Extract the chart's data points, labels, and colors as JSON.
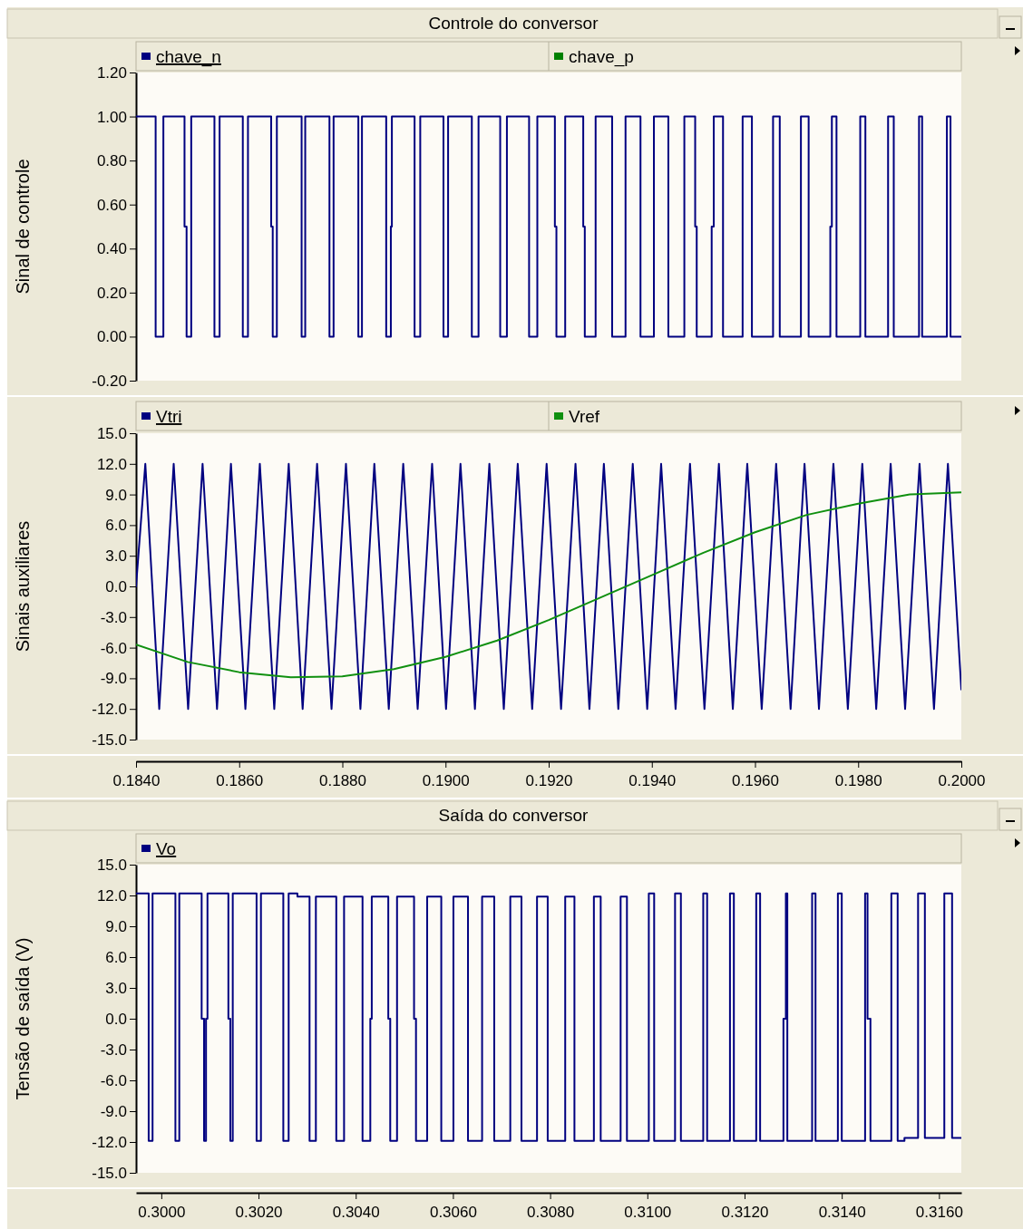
{
  "chart_data": [
    {
      "type": "step",
      "title": "Controle do conversor",
      "ylabel": "Sinal de controle",
      "legend": "top",
      "tick_labels": "y",
      "xlim": [
        0.184,
        0.2
      ],
      "ylim": [
        -0.2,
        1.2
      ],
      "yticks": [
        {
          "value": -0.2,
          "label": "-0.20"
        },
        {
          "value": 0,
          "label": "0.00"
        },
        {
          "value": 0.2,
          "label": "0.20"
        },
        {
          "value": 0.4,
          "label": "0.40"
        },
        {
          "value": 0.6,
          "label": "0.60"
        },
        {
          "value": 0.8,
          "label": "0.80"
        },
        {
          "value": 1,
          "label": "1.00"
        },
        {
          "value": 1.2,
          "label": "1.20"
        }
      ],
      "series": [
        {
          "name": "chave_n",
          "color": "#000080",
          "x": [
            0.184,
            0.18438,
            0.18453,
            0.18494,
            0.18498,
            0.18507,
            0.18552,
            0.18562,
            0.18607,
            0.18617,
            0.18662,
            0.18665,
            0.18673,
            0.18721,
            0.18728,
            0.18775,
            0.18783,
            0.18831,
            0.18838,
            0.18885,
            0.18894,
            0.18896,
            0.1894,
            0.18951,
            0.18996,
            0.19005,
            0.19051,
            0.19064,
            0.19106,
            0.19119,
            0.19162,
            0.19178,
            0.19212,
            0.19215,
            0.19232,
            0.19267,
            0.1927,
            0.19291,
            0.19323,
            0.19349,
            0.19378,
            0.19404,
            0.19432,
            0.19463,
            0.19484,
            0.19487,
            0.19516,
            0.1952,
            0.19538,
            0.19576,
            0.19594,
            0.19635,
            0.19648,
            0.19689,
            0.19704,
            0.19746,
            0.19749,
            0.19758,
            0.19804,
            0.19814,
            0.19858,
            0.19869,
            0.19918,
            0.19924,
            0.19972,
            0.19979,
            0.2
          ],
          "values": [
            1,
            0,
            1,
            0.5,
            0,
            1,
            0,
            1,
            0,
            1,
            0.5,
            0,
            1,
            0,
            1,
            0,
            1,
            0,
            1,
            0,
            0.5,
            1,
            0,
            1,
            0,
            1,
            0,
            1,
            0,
            1,
            0,
            1,
            0.5,
            0,
            1,
            0.5,
            0,
            1,
            0,
            1,
            0,
            1,
            0,
            1,
            0.5,
            0,
            0.5,
            1,
            0,
            1,
            0,
            1,
            0,
            1,
            0,
            0.5,
            1,
            0,
            1,
            0,
            1,
            0,
            1,
            0,
            1,
            0,
            0
          ]
        },
        {
          "name": "chave_p",
          "color": "#008000"
        }
      ]
    },
    {
      "type": "line",
      "ylabel": "Sinais auxiliares",
      "legend": "top",
      "xlim": [
        0.184,
        0.2
      ],
      "xticks": [
        {
          "value": 0.184,
          "label": "0.1840"
        },
        {
          "value": 0.186,
          "label": "0.1860"
        },
        {
          "value": 0.188,
          "label": "0.1880"
        },
        {
          "value": 0.19,
          "label": "0.1900"
        },
        {
          "value": 0.192,
          "label": "0.1920"
        },
        {
          "value": 0.194,
          "label": "0.1940"
        },
        {
          "value": 0.196,
          "label": "0.1960"
        },
        {
          "value": 0.198,
          "label": "0.1980"
        },
        {
          "value": 0.2,
          "label": "0.2000"
        }
      ],
      "ylim": [
        -15,
        15
      ],
      "yticks": [
        {
          "value": -15,
          "label": "-15.0"
        },
        {
          "value": -12,
          "label": "-12.0"
        },
        {
          "value": -9,
          "label": "-9.0"
        },
        {
          "value": -6,
          "label": "-6.0"
        },
        {
          "value": -3,
          "label": "-3.0"
        },
        {
          "value": 0,
          "label": "0.0"
        },
        {
          "value": 3,
          "label": "3.0"
        },
        {
          "value": 6,
          "label": "6.0"
        },
        {
          "value": 9,
          "label": "9.0"
        },
        {
          "value": 12,
          "label": "12.0"
        },
        {
          "value": 15,
          "label": "15.0"
        }
      ],
      "series": [
        {
          "name": "Vtri",
          "color": "#000080",
          "x": [
            0.184,
            0.18418,
            0.18445,
            0.18473,
            0.18501,
            0.18529,
            0.18557,
            0.18584,
            0.18612,
            0.1864,
            0.18668,
            0.18696,
            0.18723,
            0.18751,
            0.18779,
            0.18807,
            0.18835,
            0.18862,
            0.1889,
            0.18918,
            0.18946,
            0.18974,
            0.19001,
            0.19029,
            0.19057,
            0.19085,
            0.19113,
            0.1914,
            0.19168,
            0.19196,
            0.19224,
            0.19252,
            0.19279,
            0.19307,
            0.19335,
            0.19363,
            0.19391,
            0.19418,
            0.19446,
            0.19474,
            0.19502,
            0.1953,
            0.19557,
            0.19585,
            0.19613,
            0.19641,
            0.19669,
            0.19696,
            0.19724,
            0.19752,
            0.1978,
            0.19808,
            0.19835,
            0.19863,
            0.19891,
            0.19919,
            0.19947,
            0.19974,
            0.2
          ],
          "values": [
            0,
            12,
            -12,
            12,
            -12,
            12,
            -12,
            12,
            -12,
            12,
            -12,
            12,
            -12,
            12,
            -12,
            12,
            -12,
            12,
            -12,
            12,
            -12,
            12,
            -12,
            12,
            -12,
            12,
            -12,
            12,
            -12,
            12,
            -12,
            12,
            -12,
            12,
            -12,
            12,
            -12,
            12,
            -12,
            12,
            -12,
            12,
            -12,
            12,
            -12,
            12,
            -12,
            12,
            -12,
            12,
            -12,
            12,
            -12,
            12,
            -12,
            12,
            -12,
            12,
            -10.1
          ]
        },
        {
          "name": "Vref",
          "color": "#109010",
          "x": [
            0.184,
            0.185,
            0.186,
            0.187,
            0.188,
            0.189,
            0.19,
            0.191,
            0.192,
            0.193,
            0.194,
            0.195,
            0.196,
            0.197,
            0.198,
            0.199,
            0.2
          ],
          "values": [
            -5.7,
            -7.4,
            -8.4,
            -8.9,
            -8.8,
            -8.1,
            -6.9,
            -5.3,
            -3.3,
            -1.1,
            1.1,
            3.3,
            5.3,
            7,
            8.1,
            9,
            9.2
          ]
        }
      ]
    },
    {
      "type": "step",
      "title": "Saída do conversor",
      "ylabel": "Tensão de saída (V)",
      "legend": "top",
      "xlim": [
        0.29948,
        0.31646
      ],
      "xticks": [
        {
          "value": 0.3,
          "label": "0.3000"
        },
        {
          "value": 0.302,
          "label": "0.3020"
        },
        {
          "value": 0.304,
          "label": "0.3040"
        },
        {
          "value": 0.306,
          "label": "0.3060"
        },
        {
          "value": 0.308,
          "label": "0.3080"
        },
        {
          "value": 0.31,
          "label": "0.3100"
        },
        {
          "value": 0.312,
          "label": "0.3120"
        },
        {
          "value": 0.314,
          "label": "0.3140"
        },
        {
          "value": 0.316,
          "label": "0.3160"
        }
      ],
      "ylim": [
        -15,
        15
      ],
      "yticks": [
        {
          "value": -15,
          "label": "-15.0"
        },
        {
          "value": -12,
          "label": "-12.0"
        },
        {
          "value": -9,
          "label": "-9.0"
        },
        {
          "value": -6,
          "label": "-6.0"
        },
        {
          "value": -3,
          "label": "-3.0"
        },
        {
          "value": 0,
          "label": "0.0"
        },
        {
          "value": 3,
          "label": "3.0"
        },
        {
          "value": 6,
          "label": "6.0"
        },
        {
          "value": 9,
          "label": "9.0"
        },
        {
          "value": 12,
          "label": "12.0"
        },
        {
          "value": 15,
          "label": "15.0"
        }
      ],
      "series": [
        {
          "name": "Vo",
          "color": "#000080",
          "x": [
            0.29948,
            0.29974,
            0.29982,
            0.30029,
            0.30037,
            0.30083,
            0.30088,
            0.30092,
            0.30095,
            0.30138,
            0.30142,
            0.30147,
            0.30196,
            0.30205,
            0.30251,
            0.30262,
            0.3028,
            0.30305,
            0.30318,
            0.3036,
            0.30376,
            0.30414,
            0.3043,
            0.30433,
            0.30467,
            0.30471,
            0.30485,
            0.3052,
            0.30524,
            0.30547,
            0.30576,
            0.30601,
            0.30631,
            0.3066,
            0.30685,
            0.30718,
            0.30741,
            0.30773,
            0.30795,
            0.30831,
            0.3085,
            0.3089,
            0.30904,
            0.30945,
            0.30958,
            0.31003,
            0.31014,
            0.31057,
            0.31069,
            0.31115,
            0.31123,
            0.3117,
            0.31178,
            0.31224,
            0.31232,
            0.3128,
            0.31285,
            0.31288,
            0.31339,
            0.31346,
            0.31392,
            0.314,
            0.31448,
            0.31453,
            0.31459,
            0.31502,
            0.31515,
            0.31529,
            0.31557,
            0.31571,
            0.31611,
            0.31627,
            0.31646
          ],
          "values": [
            12.2,
            -11.9,
            12.2,
            -11.9,
            12.2,
            0,
            -11.9,
            0,
            12.2,
            0,
            -11.9,
            12.2,
            -11.9,
            12.2,
            -11.9,
            12.2,
            11.9,
            -11.9,
            11.9,
            -11.9,
            11.9,
            -11.9,
            0,
            11.9,
            0,
            -11.9,
            11.9,
            0,
            -11.9,
            11.9,
            -11.9,
            11.9,
            -11.9,
            11.9,
            -11.9,
            11.9,
            -11.9,
            11.9,
            -11.9,
            11.9,
            -11.9,
            11.9,
            -11.9,
            11.9,
            -11.9,
            12.2,
            -11.9,
            12.2,
            -11.9,
            12.2,
            -11.9,
            12.2,
            -11.9,
            12.2,
            -11.9,
            0,
            12.2,
            -11.9,
            12.2,
            -11.9,
            12.2,
            -11.9,
            12.2,
            0,
            -11.9,
            12.2,
            -11.9,
            -11.6,
            12.2,
            -11.6,
            12.2,
            -11.6,
            -11.6
          ]
        }
      ]
    }
  ]
}
